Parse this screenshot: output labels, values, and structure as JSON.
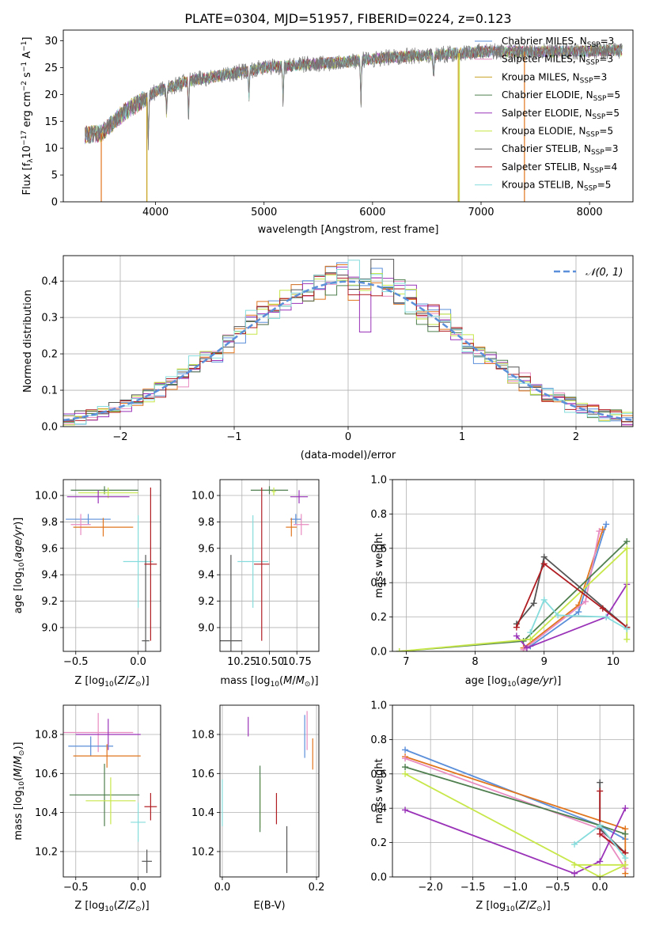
{
  "title": "PLATE=0304, MJD=51957, FIBERID=0224, z=0.123",
  "colors": {
    "ChabrierMILES": "#5b8fd9",
    "SalpeterMILES": "#e1761f",
    "KroupaMILES": "#c9a227",
    "ChabrierELODIE": "#4f7f4f",
    "SalpeterELODIE": "#9a33b8",
    "KroupaELODIE": "#c7e74a",
    "ChabrierSTELIB": "#555555",
    "SalpeterSTELIB": "#b01d22",
    "KroupaSTELIB": "#86dcdc",
    "pinkSeries": "#e88bc0",
    "normal": "#5b8fd9",
    "grid": "#b0b0b0"
  },
  "chart_data": [
    {
      "id": "spectrum",
      "type": "line",
      "title": "PLATE=0304, MJD=51957, FIBERID=0224, z=0.123",
      "xlabel": "wavelength [Angstrom, rest frame]",
      "ylabel": "Flux [f_λ10^-17 erg cm^-2 s^-1 A^-1]",
      "xlim": [
        3150,
        8400
      ],
      "ylim": [
        0,
        32
      ],
      "xticks": [
        4000,
        5000,
        6000,
        7000,
        8000
      ],
      "yticks": [
        0,
        5,
        10,
        15,
        20,
        25,
        30
      ],
      "grid": false,
      "legend_position": "top-right",
      "legend": [
        {
          "label": "Chabrier MILES, N_SSP=3",
          "color": "#5b8fd9"
        },
        {
          "label": "Salpeter MILES, N_SSP=3",
          "color": "#e88bc0"
        },
        {
          "label": "Kroupa MILES, N_SSP=3",
          "color": "#c9a227"
        },
        {
          "label": "Chabrier ELODIE, N_SSP=5",
          "color": "#4f7f4f"
        },
        {
          "label": "Salpeter ELODIE, N_SSP=5",
          "color": "#9a33b8"
        },
        {
          "label": "Kroupa ELODIE, N_SSP=5",
          "color": "#c7e74a"
        },
        {
          "label": "Chabrier STELIB, N_SSP=3",
          "color": "#555555"
        },
        {
          "label": "Salpeter STELIB, N_SSP=4",
          "color": "#b01d22"
        },
        {
          "label": "Kroupa STELIB, N_SSP=5",
          "color": "#86dcdc"
        }
      ],
      "continuum": {
        "x": [
          3350,
          3500,
          3700,
          4000,
          4300,
          4600,
          5000,
          5400,
          5800,
          6200,
          6600,
          7000,
          7400,
          7800,
          8200
        ],
        "y": [
          12.5,
          12.8,
          16.5,
          20.5,
          22.5,
          23.5,
          25,
          25.6,
          26.2,
          27,
          27.4,
          28,
          28,
          28,
          28.2
        ]
      },
      "features": [
        {
          "name": "CaHK",
          "x": 3934,
          "depth": 8
        },
        {
          "name": "Hdelta",
          "x": 4102,
          "depth": 5
        },
        {
          "name": "G",
          "x": 4304,
          "depth": 6
        },
        {
          "name": "Hbeta",
          "x": 4861,
          "depth": 5
        },
        {
          "name": "Mgb",
          "x": 5175,
          "depth": 6
        },
        {
          "name": "NaD",
          "x": 5893,
          "depth": 8
        },
        {
          "name": "Halpha",
          "x": 6563,
          "depth": 4
        }
      ],
      "model_edges": [
        {
          "color": "#e1761f",
          "x_start": 3500,
          "x_end": 7400
        },
        {
          "color": "#c7e74a",
          "x_start": 3920,
          "x_end": 6800
        },
        {
          "color": "#c9a227",
          "x_start": 3920,
          "x_end": 6790
        }
      ]
    },
    {
      "id": "residuals",
      "type": "histogram",
      "xlabel": "(data-model)/error",
      "ylabel": "Normed distribution",
      "xlim": [
        -2.5,
        2.5
      ],
      "ylim": [
        0,
        0.47
      ],
      "xticks": [
        -2,
        -1,
        0,
        1,
        2
      ],
      "yticks": [
        0,
        0.1,
        0.2,
        0.3,
        0.4
      ],
      "grid": true,
      "legend_position": "top-right",
      "reference": {
        "label": "𝒩(0, 1)",
        "mean": 0,
        "sigma": 1
      },
      "bin_width": 0.1,
      "series_count": 9
    },
    {
      "id": "age_vs_Z",
      "type": "errorbar",
      "xlabel": "Z [log10(Z/Z⊙)]",
      "ylabel": "age  [log10(age/yr)]",
      "xlim": [
        -0.6,
        0.18
      ],
      "ylim": [
        8.82,
        10.12
      ],
      "xticks": [
        -0.5,
        0.0
      ],
      "yticks": [
        9.0,
        9.2,
        9.4,
        9.6,
        9.8,
        10.0
      ],
      "grid": true,
      "points": [
        {
          "color": "#4f7f4f",
          "x": -0.27,
          "y": 10.04,
          "xerr": 0.27,
          "yerr": 0.03
        },
        {
          "color": "#c7e74a",
          "x": -0.24,
          "y": 10.02,
          "xerr": 0.24,
          "yerr": 0.04
        },
        {
          "color": "#9a33b8",
          "x": -0.32,
          "y": 9.99,
          "xerr": 0.25,
          "yerr": 0.05
        },
        {
          "color": "#5b8fd9",
          "x": -0.4,
          "y": 9.82,
          "xerr": 0.18,
          "yerr": 0.04
        },
        {
          "color": "#e88bc0",
          "x": -0.46,
          "y": 9.78,
          "xerr": 0.08,
          "yerr": 0.08
        },
        {
          "color": "#e1761f",
          "x": -0.28,
          "y": 9.76,
          "xerr": 0.24,
          "yerr": 0.07
        },
        {
          "color": "#86dcdc",
          "x": 0.0,
          "y": 9.5,
          "xerr": 0.12,
          "yerr": 0.35
        },
        {
          "color": "#555555",
          "x": 0.06,
          "y": 8.9,
          "xerr": 0.03,
          "yerr": 0.65
        },
        {
          "color": "#b01d22",
          "x": 0.1,
          "y": 9.48,
          "xerr": 0.05,
          "yerr": 0.58
        }
      ]
    },
    {
      "id": "age_vs_mass",
      "type": "errorbar",
      "xlabel": "mass [log10(M/M⊙)]",
      "xlim": [
        10.05,
        10.95
      ],
      "ylim": [
        8.82,
        10.12
      ],
      "xticks": [
        10.25,
        10.5,
        10.75
      ],
      "yticks": [
        9.0,
        9.2,
        9.4,
        9.6,
        9.8,
        10.0
      ],
      "grid": true,
      "points": [
        {
          "color": "#4f7f4f",
          "x": 10.5,
          "y": 10.04,
          "xerr": 0.17,
          "yerr": 0.03
        },
        {
          "color": "#c7e74a",
          "x": 10.54,
          "y": 10.03,
          "xerr": 0.02,
          "yerr": 0.03
        },
        {
          "color": "#9a33b8",
          "x": 10.77,
          "y": 9.99,
          "xerr": 0.08,
          "yerr": 0.05
        },
        {
          "color": "#5b8fd9",
          "x": 10.74,
          "y": 9.82,
          "xerr": 0.05,
          "yerr": 0.04
        },
        {
          "color": "#e88bc0",
          "x": 10.79,
          "y": 9.78,
          "xerr": 0.07,
          "yerr": 0.08
        },
        {
          "color": "#e1761f",
          "x": 10.7,
          "y": 9.76,
          "xerr": 0.05,
          "yerr": 0.07
        },
        {
          "color": "#86dcdc",
          "x": 10.35,
          "y": 9.5,
          "xerr": 0.14,
          "yerr": 0.35
        },
        {
          "color": "#555555",
          "x": 10.15,
          "y": 8.9,
          "xerr": 0.1,
          "yerr": 0.65
        },
        {
          "color": "#b01d22",
          "x": 10.43,
          "y": 9.48,
          "xerr": 0.07,
          "yerr": 0.58
        }
      ]
    },
    {
      "id": "weight_vs_age",
      "type": "line",
      "xlabel": "age  [log10(age/yr)]",
      "ylabel": "mass weight",
      "xlim": [
        6.8,
        10.3
      ],
      "ylim": [
        0,
        1
      ],
      "xticks": [
        7,
        8,
        9,
        10
      ],
      "yticks": [
        0,
        0.2,
        0.4,
        0.6,
        0.8,
        1.0
      ],
      "grid": true,
      "series": [
        {
          "color": "#5b8fd9",
          "x": [
            8.8,
            9.5,
            9.9
          ],
          "y": [
            0.03,
            0.23,
            0.74
          ]
        },
        {
          "color": "#e1761f",
          "x": [
            8.7,
            9.5,
            9.85
          ],
          "y": [
            0.02,
            0.27,
            0.71
          ]
        },
        {
          "color": "#e88bc0",
          "x": [
            8.7,
            9.6,
            9.8
          ],
          "y": [
            0.01,
            0.29,
            0.7
          ]
        },
        {
          "color": "#4f7f4f",
          "x": [
            6.9,
            8.7,
            10.2
          ],
          "y": [
            0.0,
            0.06,
            0.64
          ]
        },
        {
          "color": "#9a33b8",
          "x": [
            8.6,
            8.75,
            9.9,
            10.2
          ],
          "y": [
            0.09,
            0.02,
            0.2,
            0.39
          ]
        },
        {
          "color": "#c7e74a",
          "x": [
            6.9,
            8.8,
            10.2,
            10.2
          ],
          "y": [
            0.0,
            0.07,
            0.6,
            0.07
          ]
        },
        {
          "color": "#555555",
          "x": [
            8.6,
            8.85,
            9.0,
            10.2
          ],
          "y": [
            0.16,
            0.28,
            0.55,
            0.14
          ]
        },
        {
          "color": "#b01d22",
          "x": [
            8.6,
            9.0,
            9.85,
            10.2
          ],
          "y": [
            0.14,
            0.51,
            0.25,
            0.14
          ]
        },
        {
          "color": "#86dcdc",
          "x": [
            8.8,
            9.0,
            9.2,
            9.9,
            10.2
          ],
          "y": [
            0.11,
            0.3,
            0.21,
            0.2,
            0.13
          ]
        }
      ]
    },
    {
      "id": "mass_vs_Z",
      "type": "errorbar",
      "xlabel": "Z [log10(Z/Z⊙)]",
      "ylabel": "mass [log10(M/M⊙)]",
      "xlim": [
        -0.6,
        0.18
      ],
      "ylim": [
        10.07,
        10.95
      ],
      "xticks": [
        -0.5,
        0.0
      ],
      "yticks": [
        10.2,
        10.4,
        10.6,
        10.8
      ],
      "grid": true,
      "points": [
        {
          "color": "#e88bc0",
          "x": -0.32,
          "y": 10.81,
          "xerr": 0.28,
          "yerr": 0.1
        },
        {
          "color": "#9a33b8",
          "x": -0.24,
          "y": 10.8,
          "xerr": 0.26,
          "yerr": 0.08
        },
        {
          "color": "#5b8fd9",
          "x": -0.38,
          "y": 10.74,
          "xerr": 0.18,
          "yerr": 0.05
        },
        {
          "color": "#e1761f",
          "x": -0.25,
          "y": 10.69,
          "xerr": 0.27,
          "yerr": 0.06
        },
        {
          "color": "#4f7f4f",
          "x": -0.27,
          "y": 10.49,
          "xerr": 0.28,
          "yerr": 0.16
        },
        {
          "color": "#c7e74a",
          "x": -0.22,
          "y": 10.46,
          "xerr": 0.2,
          "yerr": 0.12
        },
        {
          "color": "#86dcdc",
          "x": 0.0,
          "y": 10.35,
          "xerr": 0.06,
          "yerr": 0.1
        },
        {
          "color": "#b01d22",
          "x": 0.1,
          "y": 10.43,
          "xerr": 0.05,
          "yerr": 0.07
        },
        {
          "color": "#555555",
          "x": 0.07,
          "y": 10.15,
          "xerr": 0.04,
          "yerr": 0.06
        }
      ]
    },
    {
      "id": "mass_vs_EBV",
      "type": "errorbar",
      "xlabel": "E(B-V)",
      "xlim": [
        -0.005,
        0.205
      ],
      "ylim": [
        10.07,
        10.95
      ],
      "xticks": [
        0.0,
        0.2
      ],
      "yticks": [
        10.2,
        10.4,
        10.6,
        10.8
      ],
      "grid": true,
      "points": [
        {
          "color": "#86dcdc",
          "x": 0.0,
          "y": 10.45,
          "xerr": 0,
          "yerr": 0.12
        },
        {
          "color": "#9a33b8",
          "x": 0.055,
          "y": 10.84,
          "xerr": 0,
          "yerr": 0.05
        },
        {
          "color": "#c7e74a",
          "x": 0.08,
          "y": 10.45,
          "xerr": 0,
          "yerr": 0.13
        },
        {
          "color": "#4f7f4f",
          "x": 0.08,
          "y": 10.47,
          "xerr": 0,
          "yerr": 0.17
        },
        {
          "color": "#b01d22",
          "x": 0.115,
          "y": 10.42,
          "xerr": 0,
          "yerr": 0.08
        },
        {
          "color": "#555555",
          "x": 0.137,
          "y": 10.21,
          "xerr": 0,
          "yerr": 0.12
        },
        {
          "color": "#5b8fd9",
          "x": 0.175,
          "y": 10.79,
          "xerr": 0,
          "yerr": 0.11
        },
        {
          "color": "#e88bc0",
          "x": 0.18,
          "y": 10.82,
          "xerr": 0,
          "yerr": 0.1
        },
        {
          "color": "#e1761f",
          "x": 0.192,
          "y": 10.7,
          "xerr": 0,
          "yerr": 0.08
        }
      ]
    },
    {
      "id": "weight_vs_Z",
      "type": "line",
      "xlabel": "Z [log10(Z/Z⊙)]",
      "ylabel": "mass weight",
      "xlim": [
        -2.45,
        0.4
      ],
      "ylim": [
        0,
        1
      ],
      "xticks": [
        -2.0,
        -1.5,
        -1.0,
        -0.5,
        0.0
      ],
      "yticks": [
        0,
        0.2,
        0.4,
        0.6,
        0.8,
        1.0
      ],
      "grid": true,
      "series": [
        {
          "color": "#5b8fd9",
          "x": [
            -2.3,
            0.0,
            0.3
          ],
          "y": [
            0.74,
            0.3,
            0.22
          ]
        },
        {
          "color": "#e1761f",
          "x": [
            -2.3,
            0.3,
            0.3
          ],
          "y": [
            0.7,
            0.28,
            0.02
          ]
        },
        {
          "color": "#e88bc0",
          "x": [
            -2.3,
            0.0,
            0.3
          ],
          "y": [
            0.69,
            0.28,
            0.05
          ]
        },
        {
          "color": "#4f7f4f",
          "x": [
            -2.3,
            0.0,
            0.3
          ],
          "y": [
            0.64,
            0.3,
            0.25
          ]
        },
        {
          "color": "#9a33b8",
          "x": [
            -2.3,
            -0.3,
            0.0,
            0.3
          ],
          "y": [
            0.39,
            0.02,
            0.09,
            0.4
          ]
        },
        {
          "color": "#c7e74a",
          "x": [
            -2.3,
            0.0,
            0.3,
            -0.3
          ],
          "y": [
            0.6,
            0.0,
            0.07,
            0.07
          ]
        },
        {
          "color": "#555555",
          "x": [
            0.0,
            0.0,
            0.3
          ],
          "y": [
            0.55,
            0.28,
            0.14
          ]
        },
        {
          "color": "#b01d22",
          "x": [
            0.0,
            0.0,
            0.3
          ],
          "y": [
            0.5,
            0.25,
            0.14
          ]
        },
        {
          "color": "#86dcdc",
          "x": [
            -0.3,
            0.0,
            0.3
          ],
          "y": [
            0.19,
            0.3,
            0.11
          ]
        }
      ]
    }
  ]
}
